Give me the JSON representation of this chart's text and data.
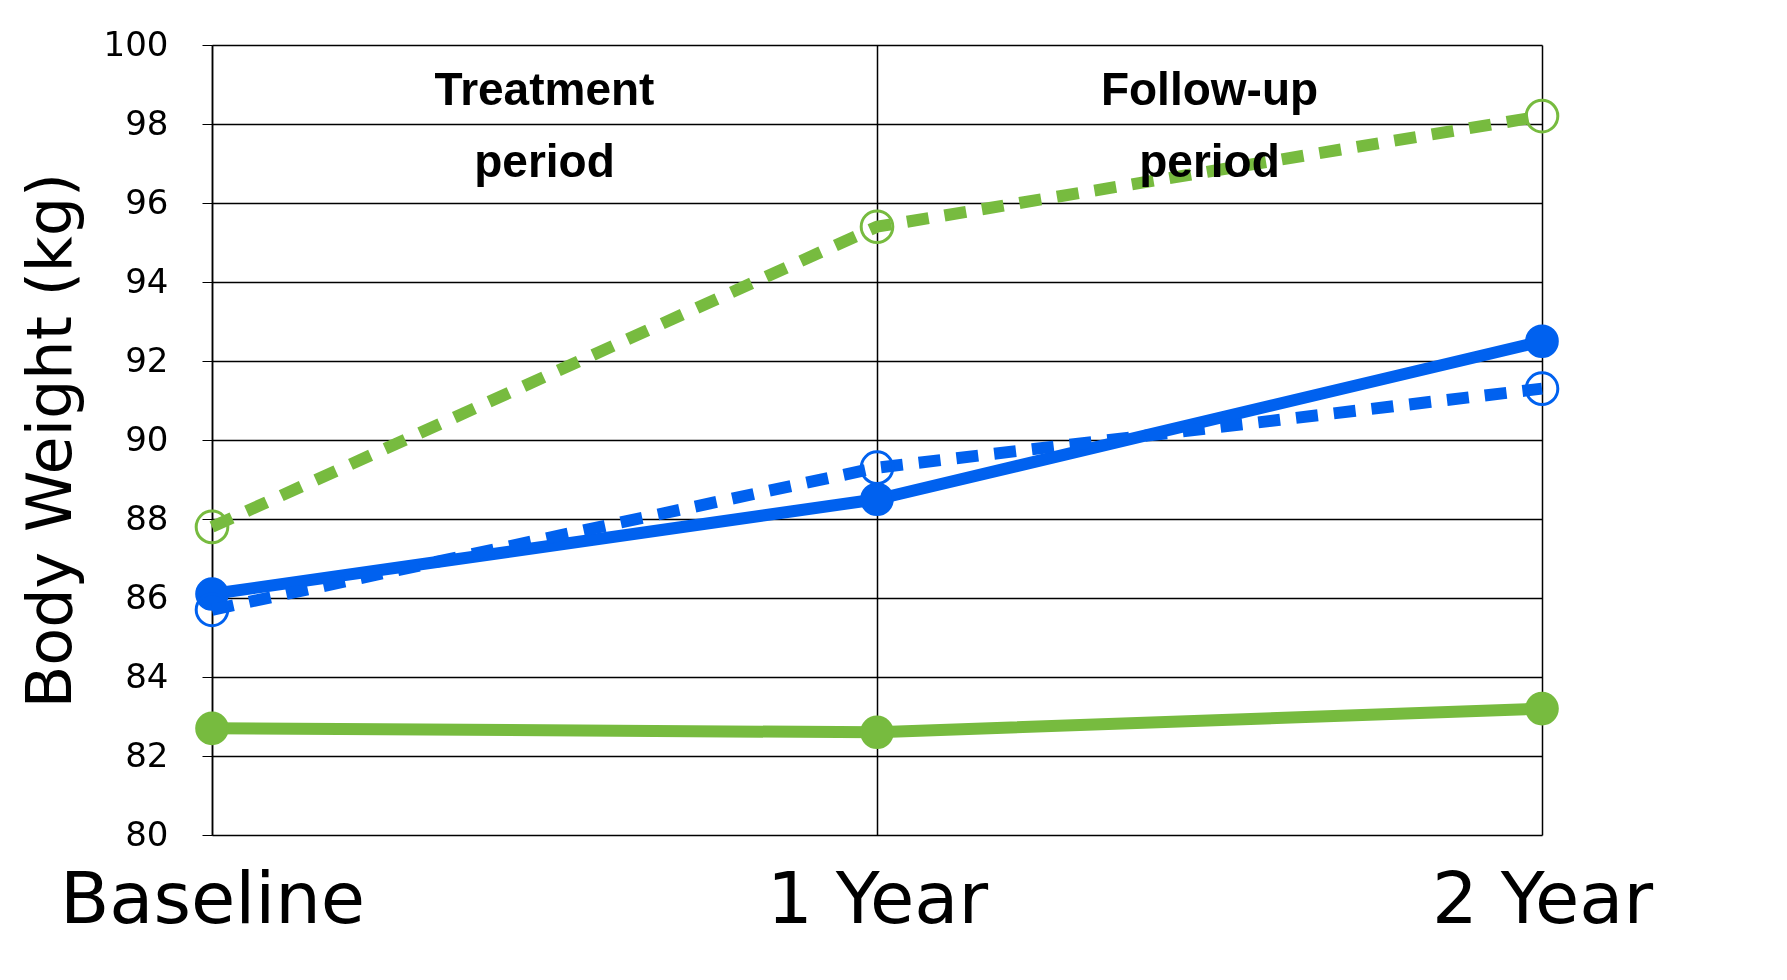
{
  "chart_data": {
    "type": "line",
    "ylabel": "Body Weight (kg)",
    "categories": [
      "Baseline",
      "1 Year",
      "2 Year"
    ],
    "series": [
      {
        "color": "#77bb3f",
        "line_style": "dashed",
        "values": [
          87.8,
          95.4,
          98.2
        ]
      },
      {
        "color": "#0061ef",
        "line_style": "solid",
        "values": [
          86.1,
          88.5,
          92.5
        ]
      },
      {
        "color": "#0061ef",
        "line_style": "dashed",
        "values": [
          85.7,
          89.3,
          91.3
        ]
      },
      {
        "color": "#77bb3f",
        "line_style": "solid",
        "values": [
          82.7,
          82.6,
          83.2
        ]
      }
    ],
    "ylim": [
      80,
      100
    ],
    "yticks": [
      80,
      82,
      84,
      86,
      88,
      90,
      92,
      94,
      96,
      98,
      100
    ],
    "grid": true,
    "marker": "circle",
    "annotations": [
      "Treatment period",
      "Follow-up period"
    ]
  }
}
